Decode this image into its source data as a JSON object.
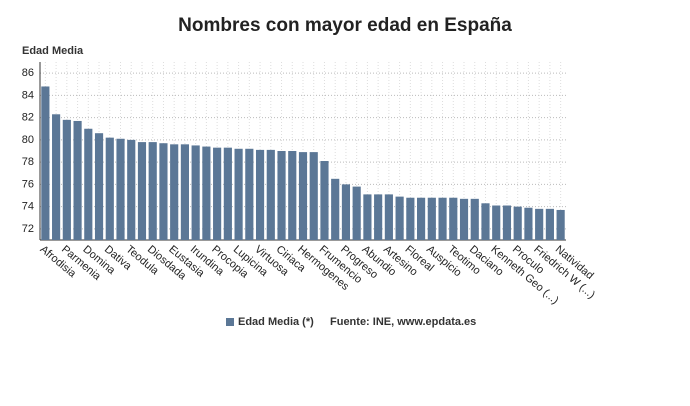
{
  "chart_data": {
    "type": "bar",
    "title": "Nombres con mayor edad en España",
    "y_label": "Edad Media",
    "source": "Fuente: INE, www.epdata.es",
    "categories": [
      "Afrodisia",
      null,
      "Parmenia",
      null,
      "Domina",
      null,
      "Dativa",
      null,
      "Teodula",
      null,
      "Diosdada",
      null,
      "Eustasia",
      null,
      "Irundina",
      null,
      "Procopia",
      null,
      "Lupicina",
      null,
      "Virtuosa",
      null,
      "Ciriaca",
      null,
      "Hermogenes",
      null,
      "Frumencio",
      null,
      "Progreso",
      null,
      "Abundio",
      null,
      "Artesino",
      null,
      "Floreal",
      null,
      "Auspicio",
      null,
      "Teotimo",
      null,
      "Daciano",
      null,
      "Kenneth Geo (...)",
      null,
      "Proculo",
      null,
      "Friedrich W (...)",
      null,
      "Natividad"
    ],
    "series": [
      {
        "name": "Edad Media (*)",
        "color": "#5b7796",
        "values": [
          84.8,
          82.3,
          81.8,
          81.7,
          81.0,
          80.6,
          80.2,
          80.1,
          80.0,
          79.8,
          79.8,
          79.7,
          79.6,
          79.6,
          79.5,
          79.4,
          79.3,
          79.3,
          79.2,
          79.2,
          79.1,
          79.1,
          79.0,
          79.0,
          78.9,
          78.9,
          78.1,
          76.5,
          76.0,
          75.8,
          75.1,
          75.1,
          75.1,
          74.9,
          74.8,
          74.8,
          74.8,
          74.8,
          74.8,
          74.7,
          74.7,
          74.3,
          74.1,
          74.1,
          74.0,
          73.9,
          73.8,
          73.8,
          73.7
        ]
      }
    ],
    "ylim": [
      71,
      87
    ],
    "yticks": [
      72,
      74,
      76,
      78,
      80,
      82,
      84,
      86
    ],
    "grid": true
  }
}
